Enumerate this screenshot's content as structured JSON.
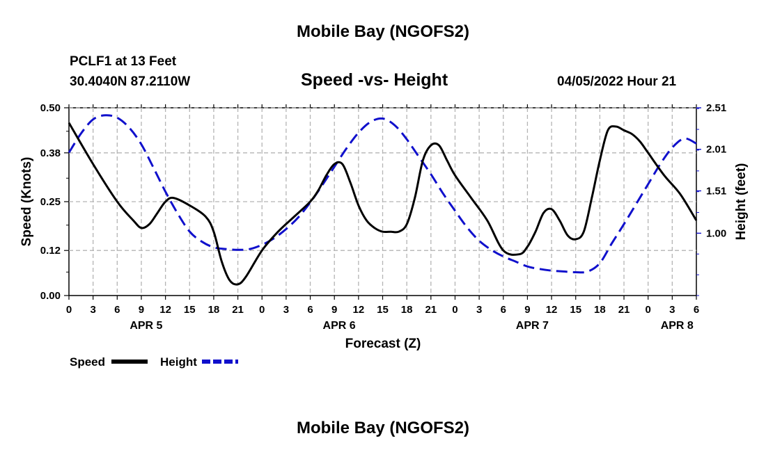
{
  "header": {
    "title": "Mobile Bay (NGOFS2)",
    "station": "PCLF1 at 13 Feet",
    "coords": "30.4040N  87.2110W",
    "chart_title": "Speed -vs- Height",
    "timestamp": "04/05/2022 Hour 21"
  },
  "footer": {
    "title": "Mobile Bay (NGOFS2)"
  },
  "chart_data": {
    "type": "line",
    "title": "Speed -vs- Height",
    "xlabel": "Forecast (Z)",
    "ylabel": "Speed (Knots)",
    "y2label": "Height (feet)",
    "x_range_hours": [
      0,
      78
    ],
    "ylim": [
      0,
      0.5
    ],
    "y2lim": [
      0.25,
      2.51
    ],
    "y_ticks": [
      0.0,
      0.12,
      0.25,
      0.38,
      0.5
    ],
    "y_tick_labels": [
      "0.00",
      "0.12",
      "0.25",
      "0.38",
      "0.50"
    ],
    "y2_ticks": [
      1.0,
      1.51,
      2.01,
      2.51
    ],
    "y2_tick_labels": [
      "1.00",
      "1.51",
      "2.01",
      "2.51"
    ],
    "x_tick_labels": [
      "0",
      "3",
      "6",
      "9",
      "12",
      "15",
      "18",
      "21",
      "0",
      "3",
      "6",
      "9",
      "12",
      "15",
      "18",
      "21",
      "0",
      "3",
      "6",
      "9",
      "12",
      "15",
      "18",
      "21",
      "0",
      "3",
      "6"
    ],
    "date_labels": [
      {
        "label": "APR 5",
        "hour": 9.6
      },
      {
        "label": "APR 6",
        "hour": 33.6
      },
      {
        "label": "APR 7",
        "hour": 57.6
      },
      {
        "label": "APR 8",
        "hour": 75.6
      }
    ],
    "grid": true,
    "legend": [
      {
        "name": "Speed",
        "color": "#000000",
        "dash": "solid"
      },
      {
        "name": "Height",
        "color": "#1010cc",
        "dash": "dashed"
      }
    ],
    "series": [
      {
        "name": "Speed",
        "axis": "left",
        "color": "#000000",
        "x": [
          0,
          3,
          6,
          8,
          9,
          10,
          11,
          12,
          13,
          15,
          17,
          18,
          19,
          20,
          21,
          22,
          24,
          26,
          28,
          30,
          31,
          32,
          33,
          34,
          35,
          36,
          37,
          38,
          39,
          40,
          41,
          42,
          43,
          44,
          45,
          46,
          47,
          48,
          50,
          52,
          54,
          56,
          57,
          58,
          59,
          60,
          61,
          62,
          63,
          64,
          65,
          66,
          67,
          68,
          69,
          70,
          71,
          72,
          74,
          76,
          78
        ],
        "y": [
          0.46,
          0.35,
          0.25,
          0.2,
          0.18,
          0.19,
          0.22,
          0.25,
          0.26,
          0.24,
          0.21,
          0.17,
          0.09,
          0.04,
          0.03,
          0.05,
          0.12,
          0.17,
          0.21,
          0.25,
          0.28,
          0.32,
          0.35,
          0.35,
          0.3,
          0.24,
          0.2,
          0.18,
          0.17,
          0.17,
          0.17,
          0.19,
          0.26,
          0.36,
          0.4,
          0.4,
          0.36,
          0.32,
          0.26,
          0.2,
          0.12,
          0.11,
          0.13,
          0.17,
          0.22,
          0.23,
          0.2,
          0.16,
          0.15,
          0.17,
          0.26,
          0.36,
          0.44,
          0.45,
          0.44,
          0.43,
          0.41,
          0.38,
          0.32,
          0.27,
          0.2
        ]
      },
      {
        "name": "Height",
        "axis": "right",
        "color": "#1010cc",
        "x": [
          0,
          1.5,
          3,
          4.5,
          6,
          7.5,
          9,
          10.5,
          12,
          13.5,
          15,
          16.5,
          18,
          19.5,
          21,
          22.5,
          24,
          25.5,
          27,
          28.5,
          30,
          31.5,
          33,
          34.5,
          36,
          37.5,
          39,
          40.5,
          42,
          43.5,
          45,
          46.5,
          48,
          49.5,
          51,
          52.5,
          54,
          55.5,
          57,
          58.5,
          60,
          61.5,
          63,
          64.5,
          66,
          67.5,
          69,
          70.5,
          72,
          73.5,
          75,
          76.5,
          78
        ],
        "y": [
          1.97,
          2.2,
          2.37,
          2.42,
          2.39,
          2.27,
          2.07,
          1.79,
          1.5,
          1.24,
          1.02,
          0.9,
          0.83,
          0.81,
          0.8,
          0.81,
          0.86,
          0.94,
          1.05,
          1.19,
          1.37,
          1.58,
          1.8,
          2.02,
          2.21,
          2.34,
          2.38,
          2.3,
          2.13,
          1.92,
          1.71,
          1.48,
          1.27,
          1.07,
          0.91,
          0.8,
          0.72,
          0.66,
          0.6,
          0.57,
          0.55,
          0.54,
          0.53,
          0.54,
          0.64,
          0.88,
          1.11,
          1.35,
          1.59,
          1.83,
          2.03,
          2.14,
          2.08
        ]
      }
    ]
  }
}
